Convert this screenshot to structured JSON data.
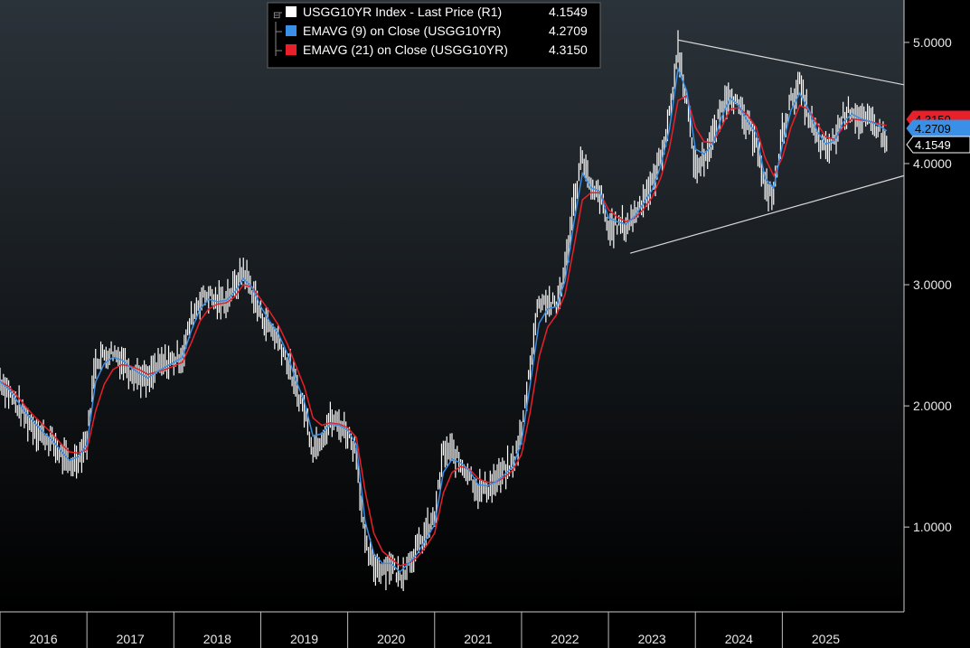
{
  "legend": [
    {
      "label": "USGG10YR Index - Last Price (R1)",
      "value": "4.1549",
      "color": "#ffffff"
    },
    {
      "label": "EMAVG (9)  on Close (USGG10YR)",
      "value": "4.2709",
      "color": "#3a8fe6"
    },
    {
      "label": "EMAVG (21)  on Close (USGG10YR)",
      "value": "4.3150",
      "color": "#e8202a"
    }
  ],
  "last_value_tags": [
    {
      "value": "4.3150",
      "color": "#e8202a"
    },
    {
      "value": "4.2709",
      "color": "#3a8fe6"
    },
    {
      "value": "4.1549",
      "color": "#ffffff"
    }
  ],
  "colors": {
    "price": "#ffffff",
    "ema9": "#3a8fe6",
    "ema21": "#e8202a",
    "trendline": "#d8d8d8",
    "background_top": "#2b333a",
    "background_bottom": "#000000"
  },
  "chart_data": {
    "type": "line",
    "title": "",
    "y_axis_side": "right",
    "ylim": [
      0.3,
      5.35
    ],
    "yticks": [
      1.0,
      2.0,
      3.0,
      4.0,
      5.0
    ],
    "ytick_labels": [
      "1.0000",
      "2.0000",
      "3.0000",
      "4.0000",
      "5.0000"
    ],
    "xlim": [
      2015.5,
      2025.9
    ],
    "x_tick_labels": [
      "2016",
      "2017",
      "2018",
      "2019",
      "2020",
      "2021",
      "2022",
      "2023",
      "2024",
      "2025"
    ],
    "grid": false,
    "legend_position": "top-left",
    "series": [
      {
        "name": "USGG10YR Index - Last Price (R1)",
        "style": "bars",
        "x": [
          2015.5,
          2015.6,
          2015.7,
          2015.8,
          2015.9,
          2016.0,
          2016.1,
          2016.2,
          2016.3,
          2016.4,
          2016.5,
          2016.6,
          2016.7,
          2016.8,
          2016.9,
          2017.0,
          2017.1,
          2017.2,
          2017.3,
          2017.4,
          2017.5,
          2017.6,
          2017.7,
          2017.8,
          2017.9,
          2018.0,
          2018.1,
          2018.2,
          2018.3,
          2018.4,
          2018.5,
          2018.6,
          2018.7,
          2018.8,
          2018.9,
          2019.0,
          2019.1,
          2019.2,
          2019.3,
          2019.4,
          2019.5,
          2019.6,
          2019.7,
          2019.8,
          2019.9,
          2020.0,
          2020.1,
          2020.2,
          2020.3,
          2020.4,
          2020.5,
          2020.6,
          2020.7,
          2020.8,
          2020.9,
          2021.0,
          2021.1,
          2021.2,
          2021.3,
          2021.4,
          2021.5,
          2021.6,
          2021.7,
          2021.8,
          2021.9,
          2022.0,
          2022.1,
          2022.2,
          2022.3,
          2022.4,
          2022.5,
          2022.6,
          2022.7,
          2022.8,
          2022.9,
          2023.0,
          2023.1,
          2023.2,
          2023.3,
          2023.4,
          2023.5,
          2023.6,
          2023.7,
          2023.8,
          2023.9,
          2024.0,
          2024.1,
          2024.2,
          2024.3,
          2024.4,
          2024.5,
          2024.6,
          2024.7,
          2024.8,
          2024.9,
          2025.0,
          2025.1,
          2025.2,
          2025.3,
          2025.4,
          2025.5,
          2025.6,
          2025.7
        ],
        "y": [
          2.22,
          2.12,
          2.0,
          1.9,
          1.82,
          1.75,
          1.7,
          1.6,
          1.5,
          1.58,
          1.72,
          2.38,
          2.42,
          2.45,
          2.38,
          2.3,
          2.25,
          2.2,
          2.32,
          2.35,
          2.38,
          2.42,
          2.72,
          2.88,
          2.92,
          2.85,
          2.88,
          2.98,
          3.12,
          2.95,
          2.75,
          2.65,
          2.55,
          2.38,
          2.15,
          1.98,
          1.65,
          1.75,
          1.88,
          1.85,
          1.78,
          1.62,
          0.85,
          0.68,
          0.66,
          0.7,
          0.58,
          0.72,
          0.82,
          0.95,
          1.08,
          1.62,
          1.62,
          1.52,
          1.45,
          1.3,
          1.32,
          1.38,
          1.45,
          1.52,
          1.78,
          2.35,
          2.88,
          2.85,
          2.82,
          3.12,
          3.68,
          4.08,
          3.75,
          3.75,
          3.45,
          3.5,
          3.48,
          3.58,
          3.72,
          3.82,
          4.05,
          4.38,
          4.95,
          4.52,
          3.95,
          4.05,
          4.2,
          4.45,
          4.6,
          4.45,
          4.3,
          4.22,
          3.78,
          3.75,
          4.25,
          4.52,
          4.65,
          4.4,
          4.2,
          4.1,
          4.2,
          4.4,
          4.45,
          4.35,
          4.35,
          4.3,
          4.15
        ]
      },
      {
        "name": "EMAVG (9)  on Close (USGG10YR)",
        "x": [
          2015.5,
          2015.6,
          2015.7,
          2015.8,
          2015.9,
          2016.0,
          2016.1,
          2016.2,
          2016.3,
          2016.4,
          2016.5,
          2016.6,
          2016.7,
          2016.8,
          2016.9,
          2017.0,
          2017.1,
          2017.2,
          2017.3,
          2017.4,
          2017.5,
          2017.6,
          2017.7,
          2017.8,
          2017.9,
          2018.0,
          2018.1,
          2018.2,
          2018.3,
          2018.4,
          2018.5,
          2018.6,
          2018.7,
          2018.8,
          2018.9,
          2019.0,
          2019.1,
          2019.2,
          2019.3,
          2019.4,
          2019.5,
          2019.6,
          2019.7,
          2019.8,
          2019.9,
          2020.0,
          2020.1,
          2020.2,
          2020.3,
          2020.4,
          2020.5,
          2020.6,
          2020.7,
          2020.8,
          2020.9,
          2021.0,
          2021.1,
          2021.2,
          2021.3,
          2021.4,
          2021.5,
          2021.6,
          2021.7,
          2021.8,
          2021.9,
          2022.0,
          2022.1,
          2022.2,
          2022.3,
          2022.4,
          2022.5,
          2022.6,
          2022.7,
          2022.8,
          2022.9,
          2023.0,
          2023.1,
          2023.2,
          2023.3,
          2023.4,
          2023.5,
          2023.6,
          2023.7,
          2023.8,
          2023.9,
          2024.0,
          2024.1,
          2024.2,
          2024.3,
          2024.4,
          2024.5,
          2024.6,
          2024.7,
          2024.8,
          2024.9,
          2025.0,
          2025.1,
          2025.2,
          2025.3,
          2025.4,
          2025.5,
          2025.6,
          2025.7
        ],
        "y": [
          2.2,
          2.14,
          2.04,
          1.94,
          1.86,
          1.78,
          1.72,
          1.63,
          1.55,
          1.58,
          1.68,
          2.2,
          2.35,
          2.4,
          2.38,
          2.32,
          2.27,
          2.23,
          2.28,
          2.32,
          2.36,
          2.4,
          2.62,
          2.8,
          2.88,
          2.86,
          2.87,
          2.94,
          3.05,
          2.98,
          2.82,
          2.7,
          2.6,
          2.44,
          2.22,
          2.04,
          1.75,
          1.77,
          1.85,
          1.84,
          1.8,
          1.68,
          1.05,
          0.78,
          0.7,
          0.7,
          0.63,
          0.7,
          0.78,
          0.9,
          1.02,
          1.45,
          1.56,
          1.53,
          1.47,
          1.35,
          1.34,
          1.37,
          1.43,
          1.5,
          1.7,
          2.18,
          2.68,
          2.8,
          2.82,
          3.03,
          3.5,
          3.92,
          3.8,
          3.77,
          3.55,
          3.52,
          3.5,
          3.56,
          3.67,
          3.78,
          3.98,
          4.28,
          4.78,
          4.6,
          4.12,
          4.08,
          4.16,
          4.38,
          4.54,
          4.48,
          4.35,
          4.25,
          3.88,
          3.8,
          4.15,
          4.44,
          4.58,
          4.45,
          4.27,
          4.16,
          4.19,
          4.34,
          4.41,
          4.37,
          4.35,
          4.32,
          4.27
        ]
      },
      {
        "name": "EMAVG (21)  on Close (USGG10YR)",
        "x": [
          2015.5,
          2015.6,
          2015.7,
          2015.8,
          2015.9,
          2016.0,
          2016.1,
          2016.2,
          2016.3,
          2016.4,
          2016.5,
          2016.6,
          2016.7,
          2016.8,
          2016.9,
          2017.0,
          2017.1,
          2017.2,
          2017.3,
          2017.4,
          2017.5,
          2017.6,
          2017.7,
          2017.8,
          2017.9,
          2018.0,
          2018.1,
          2018.2,
          2018.3,
          2018.4,
          2018.5,
          2018.6,
          2018.7,
          2018.8,
          2018.9,
          2019.0,
          2019.1,
          2019.2,
          2019.3,
          2019.4,
          2019.5,
          2019.6,
          2019.7,
          2019.8,
          2019.9,
          2020.0,
          2020.1,
          2020.2,
          2020.3,
          2020.4,
          2020.5,
          2020.6,
          2020.7,
          2020.8,
          2020.9,
          2021.0,
          2021.1,
          2021.2,
          2021.3,
          2021.4,
          2021.5,
          2021.6,
          2021.7,
          2021.8,
          2021.9,
          2022.0,
          2022.1,
          2022.2,
          2022.3,
          2022.4,
          2022.5,
          2022.6,
          2022.7,
          2022.8,
          2022.9,
          2023.0,
          2023.1,
          2023.2,
          2023.3,
          2023.4,
          2023.5,
          2023.6,
          2023.7,
          2023.8,
          2023.9,
          2024.0,
          2024.1,
          2024.2,
          2024.3,
          2024.4,
          2024.5,
          2024.6,
          2024.7,
          2024.8,
          2024.9,
          2025.0,
          2025.1,
          2025.2,
          2025.3,
          2025.4,
          2025.5,
          2025.6,
          2025.7
        ],
        "y": [
          2.2,
          2.16,
          2.08,
          1.99,
          1.91,
          1.84,
          1.77,
          1.69,
          1.62,
          1.61,
          1.64,
          1.96,
          2.18,
          2.3,
          2.34,
          2.33,
          2.3,
          2.26,
          2.28,
          2.3,
          2.33,
          2.36,
          2.52,
          2.7,
          2.8,
          2.84,
          2.85,
          2.9,
          3.0,
          2.98,
          2.88,
          2.78,
          2.67,
          2.52,
          2.34,
          2.16,
          1.9,
          1.84,
          1.86,
          1.85,
          1.82,
          1.74,
          1.3,
          0.95,
          0.8,
          0.74,
          0.68,
          0.7,
          0.75,
          0.84,
          0.95,
          1.28,
          1.45,
          1.5,
          1.48,
          1.4,
          1.37,
          1.37,
          1.41,
          1.47,
          1.6,
          1.95,
          2.4,
          2.65,
          2.75,
          2.92,
          3.3,
          3.7,
          3.76,
          3.76,
          3.62,
          3.56,
          3.52,
          3.55,
          3.62,
          3.72,
          3.88,
          4.12,
          4.52,
          4.56,
          4.3,
          4.18,
          4.17,
          4.3,
          4.45,
          4.46,
          4.4,
          4.3,
          4.05,
          3.9,
          4.05,
          4.3,
          4.48,
          4.45,
          4.33,
          4.22,
          4.2,
          4.3,
          4.37,
          4.36,
          4.35,
          4.33,
          4.315
        ]
      }
    ],
    "trendlines": [
      {
        "x": [
          2023.3,
          2025.9
        ],
        "y": [
          5.02,
          4.65
        ]
      },
      {
        "x": [
          2022.75,
          2025.9
        ],
        "y": [
          3.26,
          3.9
        ]
      }
    ]
  }
}
